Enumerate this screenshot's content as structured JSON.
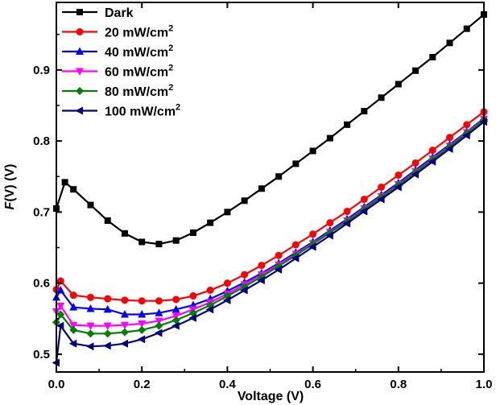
{
  "chart_data": {
    "type": "line",
    "title": "",
    "xlabel": "Voltage (V)",
    "ylabel_parts": {
      "italic": "F",
      "rest": "(V) (V)"
    },
    "xlim": [
      0.0,
      1.0
    ],
    "ylim": [
      0.475,
      0.995
    ],
    "x_ticks": [
      0.0,
      0.2,
      0.4,
      0.6,
      0.8,
      1.0
    ],
    "x_tick_labels": [
      "0.0",
      "0.2",
      "0.4",
      "0.6",
      "0.8",
      "1.0"
    ],
    "y_ticks": [
      0.5,
      0.6,
      0.7,
      0.8,
      0.9
    ],
    "y_tick_labels": [
      "0.5",
      "0.6",
      "0.7",
      "0.8",
      "0.9"
    ],
    "legend_position": "top-left",
    "series": [
      {
        "name": "Dark",
        "label_main": "Dark",
        "label_sup": "",
        "color": "#000000",
        "marker": "square",
        "x": [
          0.0,
          0.02,
          0.04,
          0.08,
          0.12,
          0.16,
          0.2,
          0.24,
          0.28,
          0.32,
          0.36,
          0.4,
          0.44,
          0.48,
          0.52,
          0.56,
          0.6,
          0.64,
          0.68,
          0.72,
          0.76,
          0.8,
          0.84,
          0.88,
          0.92,
          0.96,
          1.0
        ],
        "y": [
          0.705,
          0.742,
          0.732,
          0.71,
          0.688,
          0.67,
          0.658,
          0.655,
          0.66,
          0.671,
          0.685,
          0.7,
          0.716,
          0.733,
          0.75,
          0.768,
          0.786,
          0.804,
          0.823,
          0.842,
          0.861,
          0.88,
          0.899,
          0.918,
          0.938,
          0.958,
          0.978
        ]
      },
      {
        "name": "20 mW/cm2",
        "label_main": "20 mW/cm",
        "label_sup": "2",
        "color": "#ff0000",
        "marker": "circle",
        "x": [
          0.0,
          0.01,
          0.04,
          0.08,
          0.12,
          0.16,
          0.2,
          0.24,
          0.28,
          0.32,
          0.36,
          0.4,
          0.44,
          0.48,
          0.52,
          0.56,
          0.6,
          0.64,
          0.68,
          0.72,
          0.76,
          0.8,
          0.84,
          0.88,
          0.92,
          0.96,
          1.0
        ],
        "y": [
          0.591,
          0.603,
          0.583,
          0.58,
          0.578,
          0.576,
          0.575,
          0.575,
          0.577,
          0.582,
          0.59,
          0.6,
          0.612,
          0.625,
          0.639,
          0.654,
          0.669,
          0.685,
          0.701,
          0.718,
          0.735,
          0.752,
          0.769,
          0.787,
          0.805,
          0.823,
          0.841
        ]
      },
      {
        "name": "40 mW/cm2",
        "label_main": "40 mW/cm",
        "label_sup": "2",
        "color": "#0000ff",
        "marker": "triangle-up",
        "x": [
          0.0,
          0.01,
          0.04,
          0.08,
          0.12,
          0.16,
          0.2,
          0.24,
          0.28,
          0.32,
          0.36,
          0.4,
          0.44,
          0.48,
          0.52,
          0.56,
          0.6,
          0.64,
          0.68,
          0.72,
          0.76,
          0.8,
          0.84,
          0.88,
          0.92,
          0.96,
          1.0
        ],
        "y": [
          0.58,
          0.59,
          0.566,
          0.564,
          0.563,
          0.556,
          0.556,
          0.558,
          0.563,
          0.569,
          0.578,
          0.589,
          0.601,
          0.614,
          0.628,
          0.643,
          0.658,
          0.674,
          0.69,
          0.707,
          0.724,
          0.741,
          0.759,
          0.777,
          0.795,
          0.813,
          0.832
        ]
      },
      {
        "name": "60 mW/cm2",
        "label_main": "60 mW/cm",
        "label_sup": "2",
        "color": "#ff00ff",
        "marker": "triangle-down",
        "x": [
          0.0,
          0.01,
          0.04,
          0.08,
          0.12,
          0.16,
          0.2,
          0.24,
          0.28,
          0.32,
          0.36,
          0.4,
          0.44,
          0.48,
          0.52,
          0.56,
          0.6,
          0.64,
          0.68,
          0.72,
          0.76,
          0.8,
          0.84,
          0.88,
          0.92,
          0.96,
          1.0
        ],
        "y": [
          0.56,
          0.568,
          0.541,
          0.54,
          0.54,
          0.541,
          0.543,
          0.547,
          0.554,
          0.563,
          0.573,
          0.585,
          0.598,
          0.612,
          0.626,
          0.641,
          0.656,
          0.672,
          0.688,
          0.705,
          0.722,
          0.739,
          0.757,
          0.775,
          0.793,
          0.812,
          0.831
        ]
      },
      {
        "name": "80 mW/cm2",
        "label_main": "80 mW/cm",
        "label_sup": "2",
        "color": "#008000",
        "marker": "diamond",
        "x": [
          0.0,
          0.01,
          0.04,
          0.08,
          0.12,
          0.16,
          0.2,
          0.24,
          0.28,
          0.32,
          0.36,
          0.4,
          0.44,
          0.48,
          0.52,
          0.56,
          0.6,
          0.64,
          0.68,
          0.72,
          0.76,
          0.8,
          0.84,
          0.88,
          0.92,
          0.96,
          1.0
        ],
        "y": [
          0.545,
          0.556,
          0.534,
          0.529,
          0.529,
          0.531,
          0.534,
          0.54,
          0.548,
          0.558,
          0.569,
          0.582,
          0.595,
          0.609,
          0.624,
          0.639,
          0.655,
          0.671,
          0.687,
          0.704,
          0.721,
          0.738,
          0.756,
          0.774,
          0.792,
          0.811,
          0.83
        ]
      },
      {
        "name": "100 mW/cm2",
        "label_main": "100 mW/cm",
        "label_sup": "2",
        "color": "#000080",
        "marker": "triangle-left",
        "x": [
          0.0,
          0.01,
          0.04,
          0.08,
          0.12,
          0.16,
          0.2,
          0.24,
          0.28,
          0.32,
          0.36,
          0.4,
          0.44,
          0.48,
          0.52,
          0.56,
          0.6,
          0.64,
          0.68,
          0.72,
          0.76,
          0.8,
          0.84,
          0.88,
          0.92,
          0.96,
          1.0
        ],
        "y": [
          0.488,
          0.54,
          0.515,
          0.511,
          0.512,
          0.515,
          0.521,
          0.53,
          0.54,
          0.551,
          0.563,
          0.576,
          0.59,
          0.604,
          0.619,
          0.635,
          0.651,
          0.667,
          0.684,
          0.701,
          0.718,
          0.735,
          0.753,
          0.771,
          0.789,
          0.808,
          0.827
        ]
      }
    ]
  }
}
